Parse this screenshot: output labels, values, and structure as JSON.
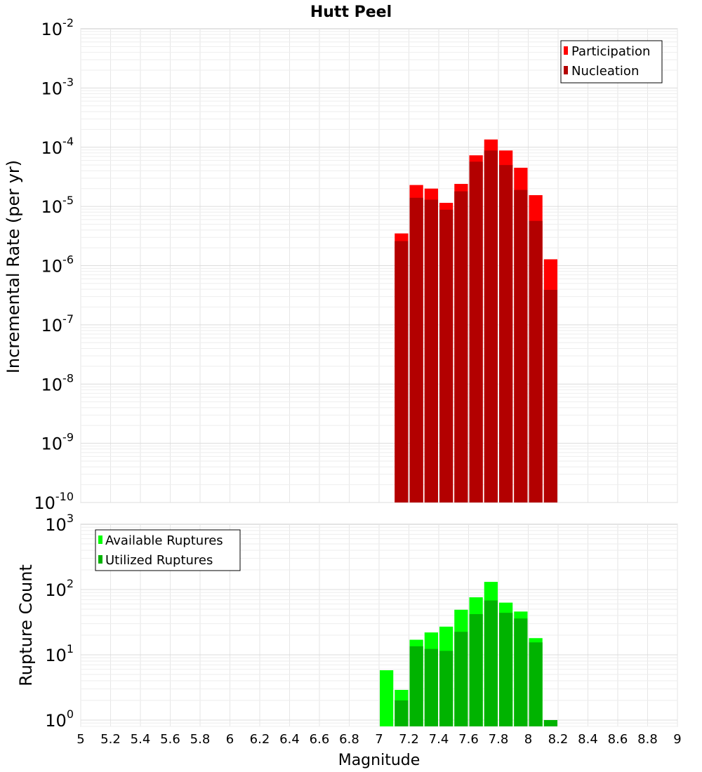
{
  "chart_data": [
    {
      "type": "bar",
      "title": "Hutt Peel",
      "xlabel": "Magnitude",
      "ylabel": "Incremental Rate (per yr)",
      "yscale": "log",
      "xlim": [
        5,
        9
      ],
      "ylim": [
        1e-10,
        0.01
      ],
      "bin_width": 0.1,
      "y_tick_labels": [
        {
          "base": "10",
          "exp": "-2"
        },
        {
          "base": "10",
          "exp": "-3"
        },
        {
          "base": "10",
          "exp": "-4"
        },
        {
          "base": "10",
          "exp": "-5"
        },
        {
          "base": "10",
          "exp": "-6"
        },
        {
          "base": "10",
          "exp": "-7"
        },
        {
          "base": "10",
          "exp": "-8"
        },
        {
          "base": "10",
          "exp": "-9"
        },
        {
          "base": "10",
          "exp": "-10"
        }
      ],
      "legend": [
        {
          "label": "Participation",
          "color": "#ff0000"
        },
        {
          "label": "Nucleation",
          "color": "#b30000"
        }
      ],
      "series": [
        {
          "name": "Participation",
          "color": "#ff0000",
          "x": [
            7.15,
            7.25,
            7.35,
            7.45,
            7.55,
            7.65,
            7.75,
            7.85,
            7.95,
            8.05,
            8.15
          ],
          "values": [
            3.5e-06,
            2.3e-05,
            2e-05,
            1.15e-05,
            2.4e-05,
            7.3e-05,
            0.000135,
            8.8e-05,
            4.5e-05,
            1.55e-05,
            1.28e-06
          ]
        },
        {
          "name": "Nucleation",
          "color": "#b30000",
          "x": [
            7.15,
            7.25,
            7.35,
            7.45,
            7.55,
            7.65,
            7.75,
            7.85,
            7.95,
            8.05,
            8.15
          ],
          "values": [
            2.6e-06,
            1.4e-05,
            1.3e-05,
            8.8e-06,
            1.8e-05,
            5.7e-05,
            8.8e-05,
            5e-05,
            1.9e-05,
            5.7e-06,
            3.9e-07
          ]
        }
      ]
    },
    {
      "type": "bar",
      "title": "",
      "xlabel": "Magnitude",
      "ylabel": "Rupture Count",
      "yscale": "log",
      "xlim": [
        5,
        9
      ],
      "ylim": [
        0.8,
        1000
      ],
      "bin_width": 0.1,
      "x_ticks": [
        "5",
        "5.2",
        "5.4",
        "5.6",
        "5.8",
        "6",
        "6.2",
        "6.4",
        "6.6",
        "6.8",
        "7",
        "7.2",
        "7.4",
        "7.6",
        "7.8",
        "8",
        "8.2",
        "8.4",
        "8.6",
        "8.8",
        "9"
      ],
      "y_tick_labels": [
        {
          "base": "10",
          "exp": "3"
        },
        {
          "base": "10",
          "exp": "2"
        },
        {
          "base": "10",
          "exp": "1"
        },
        {
          "base": "10",
          "exp": "0"
        }
      ],
      "legend": [
        {
          "label": "Available Ruptures",
          "color": "#00ff00"
        },
        {
          "label": "Utilized Ruptures",
          "color": "#00b300"
        }
      ],
      "series": [
        {
          "name": "Available Ruptures",
          "color": "#00ff00",
          "x": [
            7.05,
            7.15,
            7.25,
            7.35,
            7.45,
            7.55,
            7.65,
            7.75,
            7.85,
            7.95,
            8.05
          ],
          "values": [
            5.8,
            2.9,
            17,
            22,
            27,
            49,
            76,
            131,
            63,
            46,
            18
          ]
        },
        {
          "name": "Utilized Ruptures",
          "color": "#00b300",
          "x": [
            7.15,
            7.25,
            7.35,
            7.45,
            7.55,
            7.65,
            7.75,
            7.85,
            7.95,
            8.05,
            8.15
          ],
          "values": [
            2.0,
            13.5,
            12.3,
            11.5,
            22.5,
            42,
            68,
            44,
            36,
            15.5,
            1.0
          ]
        }
      ]
    }
  ]
}
